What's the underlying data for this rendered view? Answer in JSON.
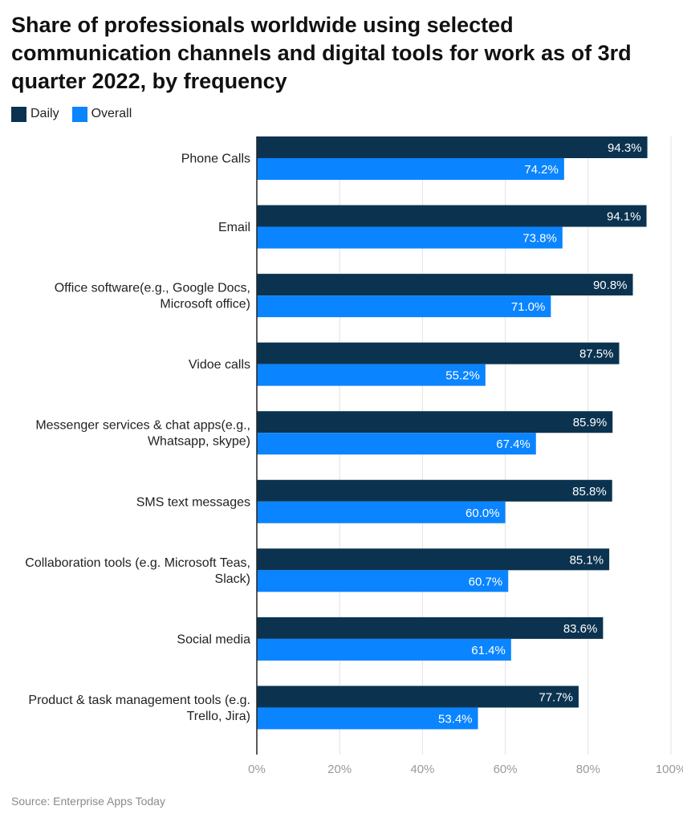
{
  "colors": {
    "daily": "#0b3350",
    "overall": "#0a84ff",
    "grid": "#e2e2e2",
    "axis": "#222222",
    "tick_label": "#9a9a9a",
    "bar_label": "#ffffff"
  },
  "chart_data": {
    "type": "bar",
    "orientation": "horizontal",
    "title": "Share of professionals worldwide using selected communication channels and digital tools for work as of 3rd quarter 2022, by frequency",
    "categories": [
      [
        "Phone Calls"
      ],
      [
        "Email"
      ],
      [
        "Office software(e.g., Google Docs,",
        "Microsoft office)"
      ],
      [
        "Vidoe calls"
      ],
      [
        "Messenger services & chat apps(e.g.,",
        "Whatsapp, skype)"
      ],
      [
        "SMS text messages"
      ],
      [
        "Collaboration tools (e.g. Microsoft Teas,",
        "Slack)"
      ],
      [
        "Social media"
      ],
      [
        "Product & task management tools (e.g.",
        "Trello, Jira)"
      ]
    ],
    "series": [
      {
        "name": "Daily",
        "values": [
          94.3,
          94.1,
          90.8,
          87.5,
          85.9,
          85.8,
          85.1,
          83.6,
          77.7
        ]
      },
      {
        "name": "Overall",
        "values": [
          74.2,
          73.8,
          71.0,
          55.2,
          67.4,
          60.0,
          60.7,
          61.4,
          53.4
        ]
      }
    ],
    "data_labels": [
      [
        "94.3%",
        "94.1%",
        "90.8%",
        "87.5%",
        "85.9%",
        "85.8%",
        "85.1%",
        "83.6%",
        "77.7%"
      ],
      [
        "74.2%",
        "73.8%",
        "71.0%",
        "55.2%",
        "67.4%",
        "60.0%",
        "60.7%",
        "61.4%",
        "53.4%"
      ]
    ],
    "x_ticks": [
      0,
      20,
      40,
      60,
      80,
      100
    ],
    "x_tick_labels": [
      "0%",
      "20%",
      "40%",
      "60%",
      "80%",
      "100%"
    ],
    "xlim": [
      0,
      100
    ],
    "grid": true,
    "legend": "top-left"
  },
  "source": "Source: Enterprise Apps Today"
}
